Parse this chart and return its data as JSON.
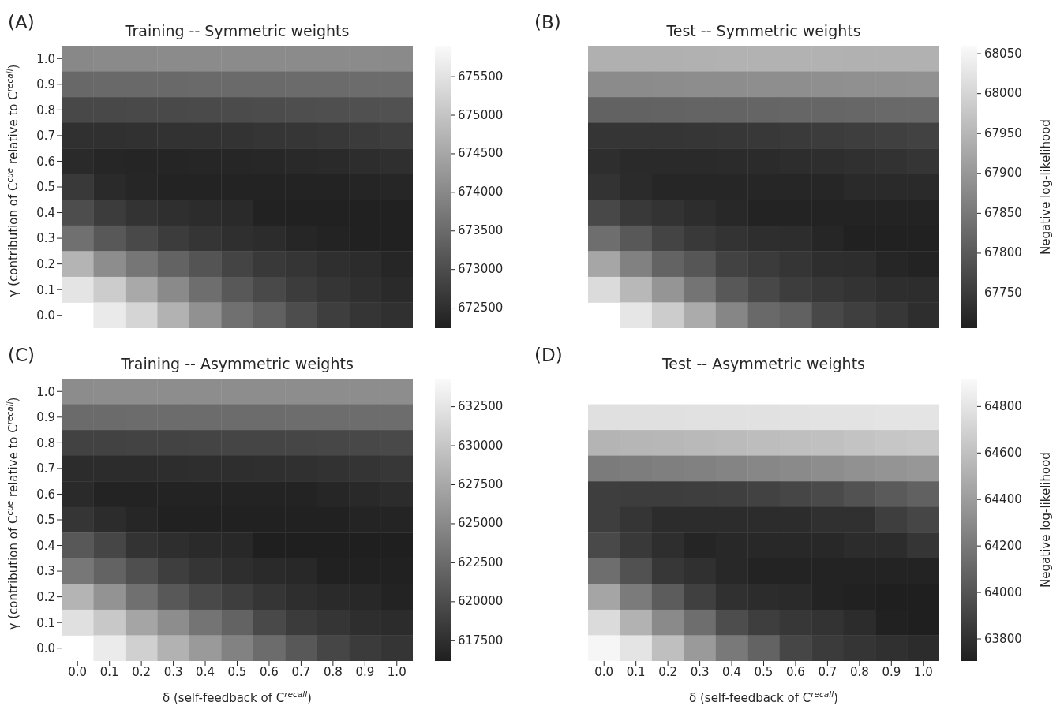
{
  "chart_data": [
    {
      "type": "heatmap",
      "title": "Training -- Symmetric weights",
      "ylabel": "γ (contribution of C$^{cue}$ relative to C$^{recall}$)",
      "annotations": [
        "(A)"
      ],
      "tick_labels": "y",
      "categories": [
        "0.0",
        "0.1",
        "0.2",
        "0.3",
        "0.4",
        "0.5",
        "0.6",
        "0.7",
        "0.8",
        "0.9",
        "1.0"
      ],
      "y_categories": [
        "1.0",
        "0.9",
        "0.8",
        "0.7",
        "0.6",
        "0.5",
        "0.4",
        "0.3",
        "0.2",
        "0.1",
        "0.0"
      ],
      "cells": [
        [
          674000,
          674020,
          674030,
          674040,
          674050,
          674050,
          674050,
          674050,
          674040,
          674040,
          674030
        ],
        [
          673460,
          673470,
          673480,
          673480,
          673490,
          673500,
          673500,
          673510,
          673510,
          673520,
          673520
        ],
        [
          672920,
          672930,
          672940,
          672950,
          672960,
          672980,
          673000,
          673020,
          673040,
          673060,
          673080
        ],
        [
          672530,
          672530,
          672540,
          672550,
          672560,
          672580,
          672600,
          672630,
          672660,
          672700,
          672750
        ],
        [
          672420,
          672350,
          672340,
          672340,
          672350,
          672360,
          672380,
          672400,
          672430,
          672470,
          672510
        ],
        [
          672680,
          672420,
          672350,
          672310,
          672300,
          672300,
          672300,
          672300,
          672310,
          672340,
          672360
        ],
        [
          673010,
          672720,
          672570,
          672500,
          672460,
          672420,
          672290,
          672280,
          672270,
          672270,
          672280
        ],
        [
          673590,
          673190,
          672940,
          672720,
          672610,
          672500,
          672460,
          672350,
          672310,
          672280,
          672280
        ],
        [
          674730,
          674070,
          673700,
          673370,
          673120,
          672860,
          672680,
          672610,
          672500,
          672460,
          672350
        ],
        [
          675530,
          675130,
          674550,
          674030,
          673560,
          673190,
          672940,
          672720,
          672610,
          672500,
          672420
        ],
        [
          null,
          675640,
          675280,
          674690,
          674140,
          673590,
          673340,
          673010,
          672750,
          672610,
          672530
        ]
      ],
      "clim": [
        672240,
        675900
      ],
      "cticks": [
        672500,
        673000,
        673500,
        674000,
        674500,
        675000,
        675500
      ]
    },
    {
      "type": "heatmap",
      "title": "Test -- Symmetric weights",
      "clabel": "Negative log-likelihood",
      "annotations": [
        "(B)"
      ],
      "tick_labels": false,
      "categories": [
        "0.0",
        "0.1",
        "0.2",
        "0.3",
        "0.4",
        "0.5",
        "0.6",
        "0.7",
        "0.8",
        "0.9",
        "1.0"
      ],
      "y_categories": [
        "1.0",
        "0.9",
        "0.8",
        "0.7",
        "0.6",
        "0.5",
        "0.4",
        "0.3",
        "0.2",
        "0.1",
        "0.0"
      ],
      "cells": [
        [
          67940,
          67940,
          67941,
          67942,
          67943,
          67943,
          67943,
          67943,
          67942,
          67942,
          67942
        ],
        [
          67880,
          67881,
          67882,
          67883,
          67884,
          67885,
          67886,
          67887,
          67888,
          67889,
          67890
        ],
        [
          67814,
          67815,
          67816,
          67817,
          67818,
          67819,
          67820,
          67821,
          67823,
          67825,
          67826
        ],
        [
          67741,
          67741,
          67742,
          67743,
          67745,
          67747,
          67750,
          67753,
          67756,
          67760,
          67763
        ],
        [
          67731,
          67724,
          67724,
          67724,
          67725,
          67726,
          67728,
          67730,
          67733,
          67737,
          67741
        ],
        [
          67738,
          67725,
          67717,
          67717,
          67717,
          67717,
          67717,
          67717,
          67724,
          67724,
          67724
        ],
        [
          67773,
          67748,
          67738,
          67728,
          67720,
          67713,
          67713,
          67713,
          67713,
          67713,
          67713
        ],
        [
          67833,
          67798,
          67766,
          67748,
          67738,
          67731,
          67728,
          67717,
          67710,
          67710,
          67710
        ],
        [
          67925,
          67865,
          67816,
          67795,
          67763,
          67752,
          67741,
          67731,
          67728,
          67717,
          67713
        ],
        [
          68010,
          67954,
          67897,
          67844,
          67798,
          67773,
          67755,
          67745,
          67738,
          67731,
          67728
        ],
        [
          null,
          68028,
          67986,
          67933,
          67872,
          67826,
          67812,
          67773,
          67758,
          67745,
          67731
        ]
      ],
      "clim": [
        67706,
        68060
      ],
      "cticks": [
        67750,
        67800,
        67850,
        67900,
        67950,
        68000,
        68050
      ]
    },
    {
      "type": "heatmap",
      "title": "Training -- Asymmetric weights",
      "xlabel": "δ (self-feedback of C$^{recall}$)",
      "ylabel": "γ (contribution of C$^{cue}$ relative to C$^{recall}$)",
      "annotations": [
        "(C)"
      ],
      "categories": [
        "0.0",
        "0.1",
        "0.2",
        "0.3",
        "0.4",
        "0.5",
        "0.6",
        "0.7",
        "0.8",
        "0.9",
        "1.0"
      ],
      "y_categories": [
        "1.0",
        "0.9",
        "0.8",
        "0.7",
        "0.6",
        "0.5",
        "0.4",
        "0.3",
        "0.2",
        "0.1",
        "0.0"
      ],
      "cells": [
        [
          625200,
          625250,
          625250,
          625300,
          625300,
          625300,
          625300,
          625300,
          625300,
          625300,
          625250
        ],
        [
          622500,
          622520,
          622540,
          622550,
          622560,
          622580,
          622600,
          622620,
          622640,
          622660,
          622680
        ],
        [
          619100,
          619100,
          619150,
          619200,
          619250,
          619300,
          619350,
          619400,
          619500,
          619550,
          619640
        ],
        [
          617290,
          617290,
          617300,
          617350,
          617400,
          617450,
          617500,
          617600,
          617750,
          617950,
          618190
        ],
        [
          617100,
          616560,
          616560,
          616560,
          616560,
          616560,
          616560,
          616560,
          616800,
          617000,
          617290
        ],
        [
          618010,
          617290,
          616740,
          616380,
          616380,
          616380,
          616380,
          616380,
          616380,
          616600,
          616600
        ],
        [
          620910,
          619460,
          617830,
          617460,
          617100,
          616920,
          616200,
          616200,
          616200,
          616200,
          616200
        ],
        [
          623440,
          621810,
          620180,
          618730,
          618010,
          617460,
          617100,
          616920,
          616380,
          616380,
          616380
        ],
        [
          628510,
          625790,
          622900,
          620910,
          619640,
          618730,
          618010,
          617460,
          617100,
          616920,
          616560
        ],
        [
          632130,
          630140,
          627240,
          625250,
          623260,
          621810,
          619640,
          618550,
          618010,
          617460,
          617290
        ],
        [
          null,
          633030,
          630860,
          628330,
          626340,
          624350,
          622540,
          620910,
          619460,
          618550,
          618010
        ]
      ],
      "clim": [
        616200,
        634300
      ],
      "cticks": [
        617500,
        620000,
        622500,
        625000,
        627500,
        630000,
        632500
      ]
    },
    {
      "type": "heatmap",
      "title": "Test -- Asymmetric weights",
      "xlabel": "δ (self-feedback of C$^{recall}$)",
      "clabel": "Negative log-likelihood",
      "annotations": [
        "(D)"
      ],
      "tick_labels": "x",
      "categories": [
        "0.0",
        "0.1",
        "0.2",
        "0.3",
        "0.4",
        "0.5",
        "0.6",
        "0.7",
        "0.8",
        "0.9",
        "1.0"
      ],
      "y_categories": [
        "1.0",
        "0.9",
        "0.8",
        "0.7",
        "0.6",
        "0.5",
        "0.4",
        "0.3",
        "0.2",
        "0.1",
        "0.0"
      ],
      "cells": [
        [
          null,
          null,
          null,
          null,
          null,
          null,
          null,
          null,
          null,
          null,
          null
        ],
        [
          64774,
          64776,
          64778,
          64780,
          64782,
          64784,
          64786,
          64790,
          64794,
          64797,
          64800
        ],
        [
          64531,
          64540,
          64550,
          64560,
          64570,
          64580,
          64590,
          64600,
          64615,
          64630,
          64640
        ],
        [
          64215,
          64225,
          64235,
          64250,
          64265,
          64280,
          64300,
          64315,
          64335,
          64355,
          64373
        ],
        [
          63875,
          63870,
          63870,
          63875,
          63885,
          63900,
          63920,
          63945,
          63990,
          64030,
          64070
        ],
        [
          63875,
          63827,
          63778,
          63778,
          63778,
          63778,
          63778,
          63802,
          63802,
          63875,
          63924
        ],
        [
          63936,
          63851,
          63790,
          63741,
          63754,
          63754,
          63754,
          63754,
          63778,
          63778,
          63827
        ],
        [
          64142,
          63984,
          63839,
          63802,
          63754,
          63729,
          63729,
          63729,
          63729,
          63729,
          63729
        ],
        [
          64446,
          64215,
          64045,
          63887,
          63802,
          63778,
          63766,
          63729,
          63717,
          63705,
          63705
        ],
        [
          64750,
          64519,
          64300,
          64142,
          63960,
          63875,
          63839,
          63814,
          63778,
          63717,
          63705
        ],
        [
          64896,
          64800,
          64592,
          64385,
          64203,
          64082,
          63924,
          63863,
          63827,
          63802,
          63778
        ]
      ],
      "clim": [
        63705,
        64920
      ],
      "cticks": [
        63800,
        64000,
        64200,
        64400,
        64600,
        64800
      ]
    }
  ]
}
